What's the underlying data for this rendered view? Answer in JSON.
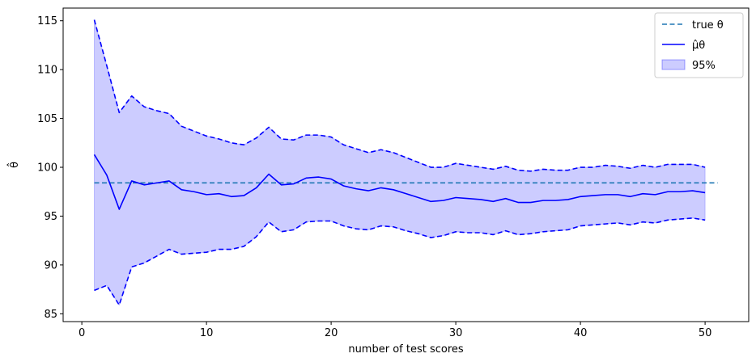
{
  "chart_data": {
    "type": "line",
    "title": "",
    "xlabel": "number of test scores",
    "ylabel": "θ̂",
    "xlim": [
      -1.5,
      53.5
    ],
    "ylim": [
      84.2,
      116.3
    ],
    "xticks": [
      0,
      10,
      20,
      30,
      40,
      50
    ],
    "yticks": [
      85,
      90,
      95,
      100,
      105,
      110,
      115
    ],
    "grid": false,
    "legend_position": "top-right",
    "true_theta": {
      "name": "true θ",
      "value": 98.4,
      "x_range": [
        1,
        51
      ],
      "color": "#1f77b4",
      "style": "dashed"
    },
    "x": [
      1,
      2,
      3,
      4,
      5,
      6,
      7,
      8,
      9,
      10,
      11,
      12,
      13,
      14,
      15,
      16,
      17,
      18,
      19,
      20,
      21,
      22,
      23,
      24,
      25,
      26,
      27,
      28,
      29,
      30,
      31,
      32,
      33,
      34,
      35,
      36,
      37,
      38,
      39,
      40,
      41,
      42,
      43,
      44,
      45,
      46,
      47,
      48,
      49,
      50
    ],
    "series": [
      {
        "name": "μ̂θ",
        "color": "#0000ff",
        "values": [
          101.3,
          99.2,
          95.7,
          98.6,
          98.2,
          98.4,
          98.6,
          97.7,
          97.5,
          97.2,
          97.3,
          97.0,
          97.1,
          97.9,
          99.3,
          98.2,
          98.3,
          98.9,
          99.0,
          98.8,
          98.1,
          97.8,
          97.6,
          97.9,
          97.7,
          97.3,
          96.9,
          96.5,
          96.6,
          96.9,
          96.8,
          96.7,
          96.5,
          96.8,
          96.4,
          96.4,
          96.6,
          96.6,
          96.7,
          97.0,
          97.1,
          97.2,
          97.2,
          97.0,
          97.3,
          97.2,
          97.5,
          97.5,
          97.6,
          97.4
        ]
      },
      {
        "name": "upper",
        "color": "#0000ff",
        "style": "dashed",
        "values": [
          115.1,
          110.4,
          105.6,
          107.3,
          106.2,
          105.8,
          105.5,
          104.2,
          103.7,
          103.2,
          102.9,
          102.5,
          102.3,
          103.0,
          104.1,
          102.9,
          102.8,
          103.3,
          103.3,
          103.1,
          102.3,
          101.9,
          101.5,
          101.8,
          101.5,
          101.0,
          100.5,
          100.0,
          100.0,
          100.4,
          100.2,
          100.0,
          99.8,
          100.1,
          99.7,
          99.6,
          99.8,
          99.7,
          99.7,
          100.0,
          100.0,
          100.2,
          100.1,
          99.9,
          100.2,
          100.0,
          100.3,
          100.3,
          100.3,
          100.0
        ]
      },
      {
        "name": "lower",
        "color": "#0000ff",
        "style": "dashed",
        "values": [
          87.4,
          87.9,
          85.9,
          89.8,
          90.2,
          90.9,
          91.6,
          91.1,
          91.2,
          91.3,
          91.6,
          91.6,
          91.9,
          92.9,
          94.4,
          93.4,
          93.6,
          94.4,
          94.5,
          94.5,
          94.0,
          93.7,
          93.6,
          94.0,
          93.9,
          93.5,
          93.2,
          92.8,
          93.0,
          93.4,
          93.3,
          93.3,
          93.1,
          93.5,
          93.1,
          93.2,
          93.4,
          93.5,
          93.6,
          94.0,
          94.1,
          94.2,
          94.3,
          94.1,
          94.4,
          94.3,
          94.6,
          94.7,
          94.8,
          94.6
        ]
      }
    ],
    "band": {
      "name": "95%",
      "lower": "lower",
      "upper": "upper",
      "fill": "#0000ff",
      "opacity": 0.2
    },
    "legend": [
      "true θ",
      "μ̂θ",
      "95%"
    ]
  }
}
